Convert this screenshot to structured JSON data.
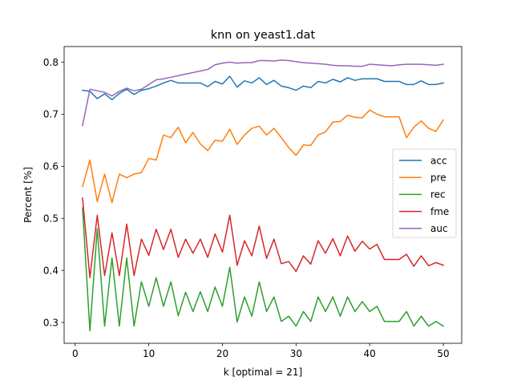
{
  "chart_data": {
    "type": "line",
    "title": "knn on yeast1.dat",
    "xlabel": "k [optimal = 21]",
    "ylabel": "Percent [%]",
    "xlim": [
      -1.5,
      52.5
    ],
    "ylim": [
      0.26,
      0.83
    ],
    "xticks": [
      0,
      10,
      20,
      30,
      40,
      50
    ],
    "yticks": [
      0.3,
      0.4,
      0.5,
      0.6,
      0.7,
      0.8
    ],
    "grid": false,
    "legend_position": "center right",
    "x": [
      1,
      2,
      3,
      4,
      5,
      6,
      7,
      8,
      9,
      10,
      11,
      12,
      13,
      14,
      15,
      16,
      17,
      18,
      19,
      20,
      21,
      22,
      23,
      24,
      25,
      26,
      27,
      28,
      29,
      30,
      31,
      32,
      33,
      34,
      35,
      36,
      37,
      38,
      39,
      40,
      41,
      42,
      43,
      44,
      45,
      46,
      47,
      48,
      49,
      50
    ],
    "series": [
      {
        "name": "acc",
        "color": "#1f77b4",
        "values": [
          0.746,
          0.744,
          0.73,
          0.739,
          0.728,
          0.74,
          0.748,
          0.738,
          0.746,
          0.749,
          0.754,
          0.76,
          0.765,
          0.76,
          0.76,
          0.76,
          0.76,
          0.753,
          0.763,
          0.758,
          0.773,
          0.752,
          0.764,
          0.76,
          0.77,
          0.757,
          0.765,
          0.754,
          0.751,
          0.746,
          0.754,
          0.751,
          0.763,
          0.76,
          0.767,
          0.762,
          0.77,
          0.765,
          0.768,
          0.768,
          0.768,
          0.763,
          0.763,
          0.763,
          0.757,
          0.757,
          0.764,
          0.757,
          0.757,
          0.76
        ]
      },
      {
        "name": "pre",
        "color": "#ff7f0e",
        "values": [
          0.561,
          0.612,
          0.532,
          0.585,
          0.53,
          0.585,
          0.578,
          0.585,
          0.588,
          0.615,
          0.612,
          0.66,
          0.655,
          0.675,
          0.645,
          0.665,
          0.643,
          0.63,
          0.65,
          0.648,
          0.671,
          0.642,
          0.66,
          0.673,
          0.677,
          0.66,
          0.673,
          0.655,
          0.636,
          0.621,
          0.641,
          0.64,
          0.66,
          0.666,
          0.685,
          0.686,
          0.698,
          0.694,
          0.693,
          0.708,
          0.7,
          0.695,
          0.695,
          0.695,
          0.655,
          0.675,
          0.687,
          0.673,
          0.667,
          0.689
        ]
      },
      {
        "name": "rec",
        "color": "#2ca02c",
        "values": [
          0.52,
          0.284,
          0.48,
          0.293,
          0.424,
          0.293,
          0.424,
          0.293,
          0.378,
          0.331,
          0.386,
          0.331,
          0.378,
          0.313,
          0.358,
          0.321,
          0.359,
          0.321,
          0.368,
          0.331,
          0.406,
          0.301,
          0.349,
          0.312,
          0.378,
          0.321,
          0.349,
          0.302,
          0.312,
          0.293,
          0.321,
          0.302,
          0.349,
          0.321,
          0.349,
          0.312,
          0.349,
          0.321,
          0.34,
          0.321,
          0.331,
          0.302,
          0.302,
          0.302,
          0.321,
          0.293,
          0.312,
          0.293,
          0.302,
          0.293
        ]
      },
      {
        "name": "fme",
        "color": "#d62728",
        "values": [
          0.539,
          0.386,
          0.506,
          0.39,
          0.472,
          0.39,
          0.489,
          0.39,
          0.46,
          0.429,
          0.479,
          0.44,
          0.479,
          0.425,
          0.46,
          0.433,
          0.46,
          0.425,
          0.47,
          0.435,
          0.506,
          0.41,
          0.457,
          0.428,
          0.485,
          0.423,
          0.46,
          0.413,
          0.417,
          0.398,
          0.428,
          0.412,
          0.457,
          0.433,
          0.461,
          0.428,
          0.466,
          0.437,
          0.456,
          0.441,
          0.45,
          0.421,
          0.421,
          0.421,
          0.431,
          0.408,
          0.428,
          0.409,
          0.415,
          0.41
        ]
      },
      {
        "name": "auc",
        "color": "#9467bd",
        "values": [
          0.678,
          0.748,
          0.745,
          0.742,
          0.735,
          0.744,
          0.75,
          0.745,
          0.748,
          0.757,
          0.766,
          0.768,
          0.771,
          0.774,
          0.777,
          0.78,
          0.783,
          0.786,
          0.795,
          0.798,
          0.8,
          0.798,
          0.799,
          0.799,
          0.803,
          0.803,
          0.802,
          0.804,
          0.803,
          0.801,
          0.799,
          0.798,
          0.797,
          0.796,
          0.794,
          0.793,
          0.793,
          0.792,
          0.792,
          0.796,
          0.795,
          0.794,
          0.793,
          0.795,
          0.796,
          0.796,
          0.796,
          0.795,
          0.794,
          0.796
        ]
      }
    ]
  }
}
